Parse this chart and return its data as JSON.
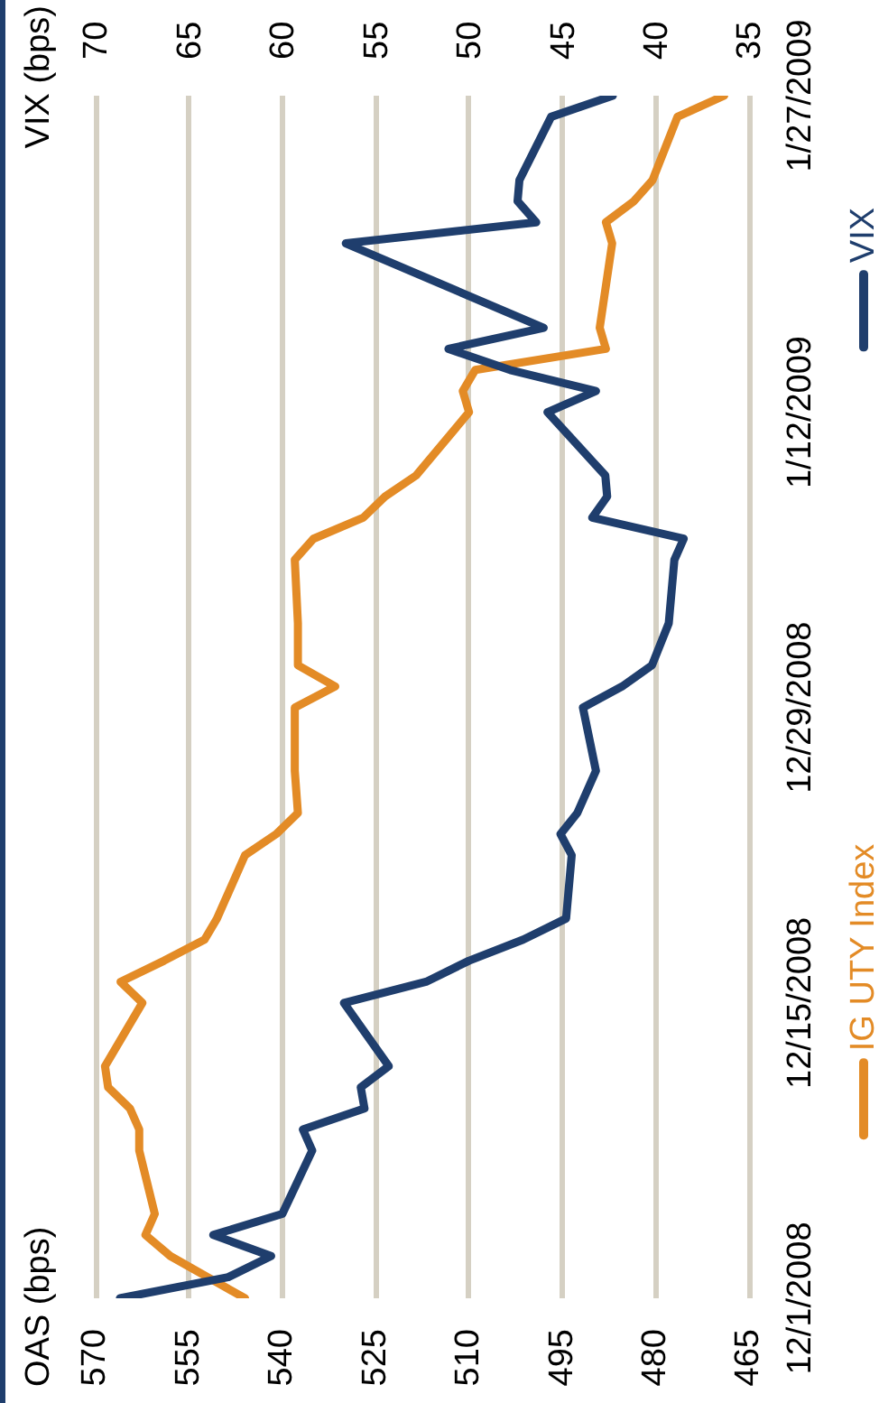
{
  "chart_data": {
    "type": "line",
    "orientation": "horizontal",
    "x": [
      "2008-12-01",
      "2008-12-02",
      "2008-12-03",
      "2008-12-04",
      "2008-12-05",
      "2008-12-08",
      "2008-12-09",
      "2008-12-10",
      "2008-12-11",
      "2008-12-12",
      "2008-12-15",
      "2008-12-16",
      "2008-12-17",
      "2008-12-18",
      "2008-12-19",
      "2008-12-22",
      "2008-12-23",
      "2008-12-24",
      "2008-12-26",
      "2008-12-29",
      "2008-12-30",
      "2008-12-31",
      "2009-01-02",
      "2009-01-05",
      "2009-01-06",
      "2009-01-07",
      "2009-01-08",
      "2009-01-09",
      "2009-01-12",
      "2009-01-13",
      "2009-01-14",
      "2009-01-15",
      "2009-01-16",
      "2009-01-20",
      "2009-01-21",
      "2009-01-22",
      "2009-01-23",
      "2009-01-26",
      "2009-01-27"
    ],
    "series": [
      {
        "name": "IG UTY Index",
        "color": "#e38b26",
        "values": [
          546,
          552,
          558,
          562,
          560.5,
          563,
          563,
          564.5,
          568,
          568.5,
          562.5,
          566,
          559,
          552.5,
          550.5,
          546,
          541,
          537.5,
          538,
          538,
          531.5,
          537.5,
          537.5,
          538,
          535,
          527,
          523.5,
          518.5,
          510,
          511,
          509,
          488,
          489,
          487,
          488,
          483.5,
          480.5,
          476.5,
          469
        ]
      },
      {
        "name": "VIX",
        "color": "#1f3e6d",
        "axis": "x2",
        "values": [
          68.7,
          62.9,
          60.6,
          63.7,
          60.0,
          58.4,
          58.9,
          55.6,
          55.8,
          54.3,
          56.7,
          52.3,
          50.0,
          47.1,
          44.8,
          44.5,
          45.1,
          44.2,
          43.2,
          43.9,
          41.8,
          40.2,
          39.3,
          39.0,
          38.5,
          43.4,
          42.6,
          42.7,
          45.8,
          43.2,
          47.8,
          51.1,
          46.0,
          56.6,
          46.4,
          47.4,
          47.3,
          45.6,
          42.3
        ]
      }
    ],
    "x2label": "VIX (bps)",
    "annotations": [
      "OAS (bps)"
    ],
    "xlim": [
      570,
      465
    ],
    "xticks": [
      570,
      555,
      540,
      525,
      510,
      495,
      480,
      465
    ],
    "x2lim": [
      70,
      35
    ],
    "x2ticks": [
      70,
      65,
      60,
      55,
      50,
      45,
      40,
      35
    ],
    "ylim": [
      "2008-12-01",
      "2009-01-27"
    ],
    "yticks": [
      {
        "value": "2008-12-01",
        "label": "12/1/2008"
      },
      {
        "value": "2008-12-15",
        "label": "12/15/2008"
      },
      {
        "value": "2008-12-29",
        "label": "12/29/2008"
      },
      {
        "value": "2009-01-12",
        "label": "1/12/2009"
      },
      {
        "value": "2009-01-27",
        "label": "1/27/2009"
      }
    ],
    "grid": "x",
    "legend": "right"
  }
}
